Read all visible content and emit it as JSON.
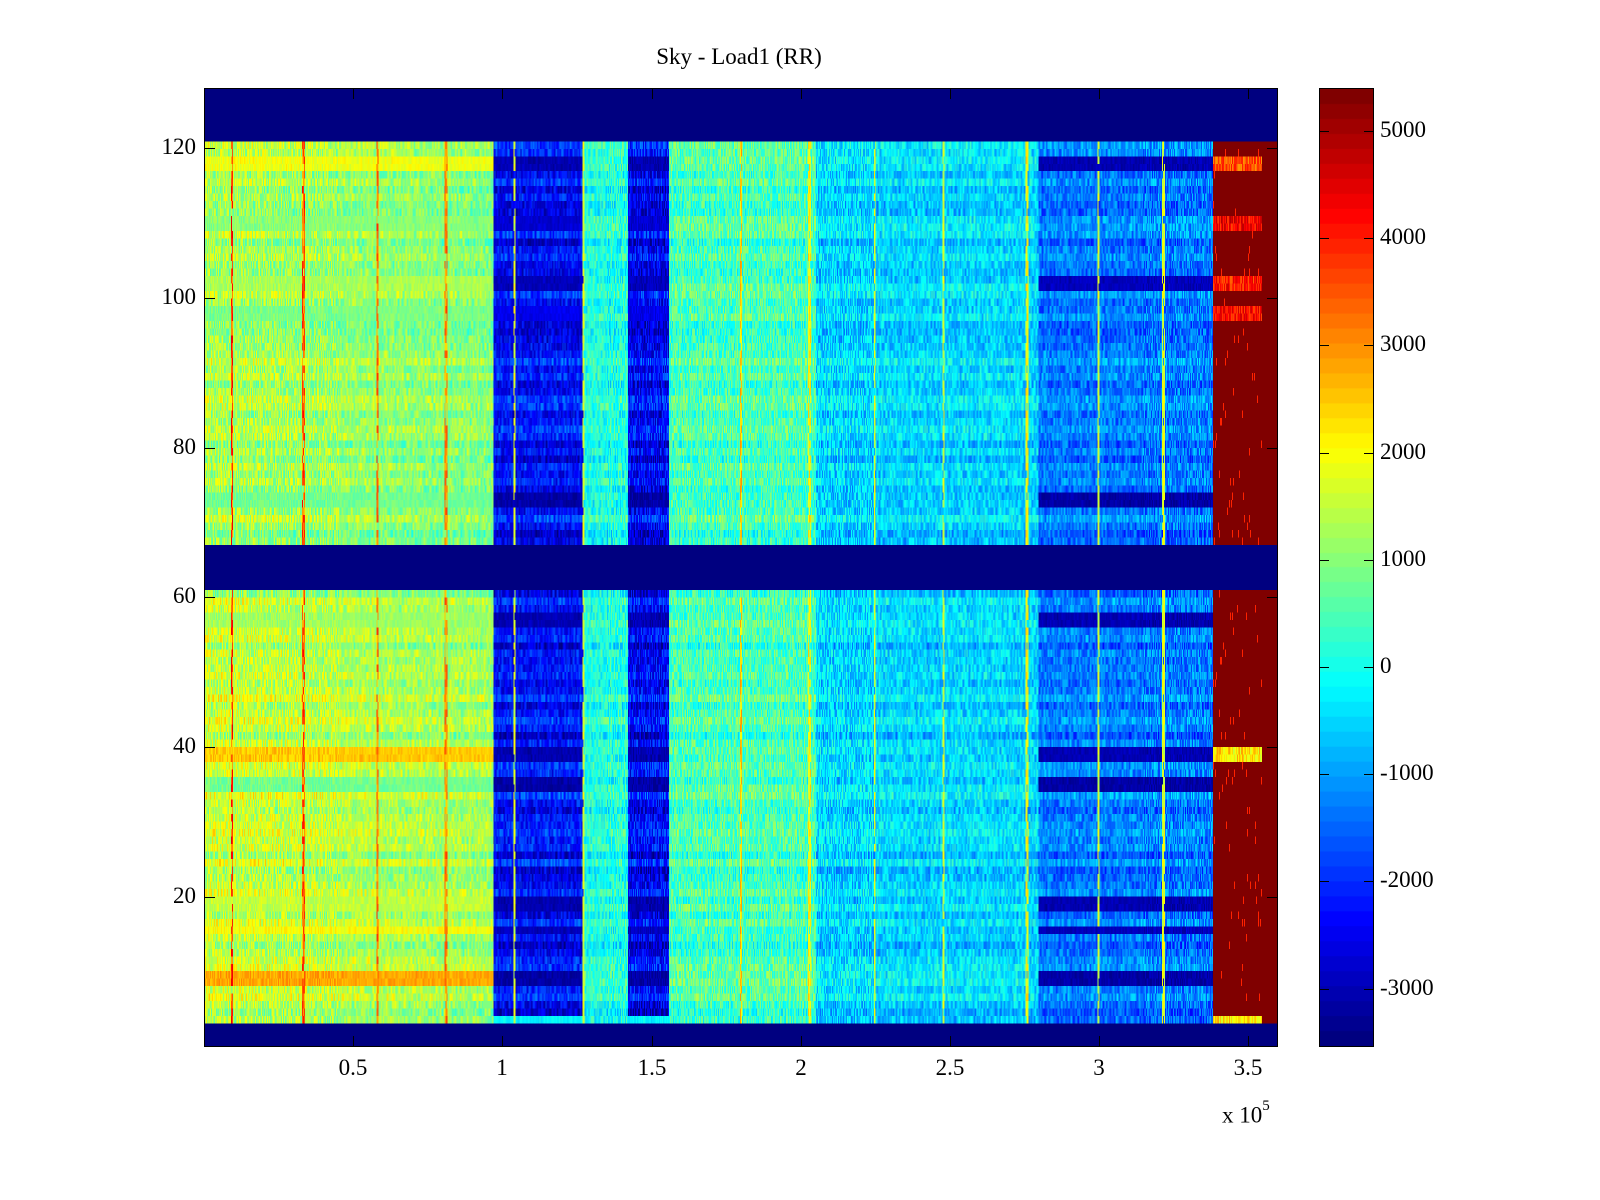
{
  "chart_data": {
    "type": "heatmap",
    "title": "Sky - Load1 (RR)",
    "xlabel": "",
    "ylabel": "",
    "x_multiplier": "x 10",
    "x_multiplier_exponent": "5",
    "xlim": [
      0,
      3.6
    ],
    "ylim": [
      0,
      128
    ],
    "clim": [
      -3545,
      5400
    ],
    "colormap": "jet",
    "x_ticks": [
      0.5,
      1,
      1.5,
      2,
      2.5,
      3,
      3.5
    ],
    "x_tick_labels": [
      "0.5",
      "1",
      "1.5",
      "2",
      "2.5",
      "3",
      "3.5"
    ],
    "y_ticks": [
      20,
      40,
      60,
      80,
      100,
      120
    ],
    "y_tick_labels": [
      "20",
      "40",
      "60",
      "80",
      "100",
      "120"
    ],
    "colorbar_ticks": [
      -3000,
      -2000,
      -1000,
      0,
      1000,
      2000,
      3000,
      4000,
      5000
    ],
    "colorbar_tick_labels": [
      "-3000",
      "-2000",
      "-1000",
      "0",
      "1000",
      "2000",
      "3000",
      "4000",
      "5000"
    ],
    "empty_row_bands": [
      [
        0,
        3
      ],
      [
        61.2,
        67.2
      ],
      [
        121.2,
        128
      ]
    ],
    "column_regions": [
      {
        "x0": 0.0,
        "x1": 0.97,
        "mean": 950
      },
      {
        "x0": 0.97,
        "x1": 1.27,
        "mean": -2300
      },
      {
        "x0": 1.27,
        "x1": 1.42,
        "mean": 100
      },
      {
        "x0": 1.42,
        "x1": 1.56,
        "mean": -2400
      },
      {
        "x0": 1.56,
        "x1": 2.05,
        "mean": 450
      },
      {
        "x0": 2.05,
        "x1": 2.8,
        "mean": -500
      },
      {
        "x0": 2.8,
        "x1": 3.385,
        "mean": -1300
      },
      {
        "x0": 3.385,
        "x1": 3.6,
        "mean": 5400
      }
    ],
    "vertical_stripes": [
      {
        "x": 0.09,
        "value": 4500
      },
      {
        "x": 0.33,
        "value": 4200
      },
      {
        "x": 0.58,
        "value": 4000
      },
      {
        "x": 0.81,
        "value": 3800
      },
      {
        "x": 1.04,
        "value": 2200
      },
      {
        "x": 1.27,
        "value": 2200
      },
      {
        "x": 1.8,
        "value": 3000
      },
      {
        "x": 2.03,
        "value": 2500
      },
      {
        "x": 2.25,
        "value": 2200
      },
      {
        "x": 2.48,
        "value": 2000
      },
      {
        "x": 2.76,
        "value": 2500
      },
      {
        "x": 3.0,
        "value": 2000
      },
      {
        "x": 3.22,
        "value": 2200
      }
    ],
    "row_anomalies": [
      {
        "y": 3.5,
        "left": 0,
        "blue": -500,
        "right_partial": 2200
      },
      {
        "y": 9,
        "left": 2800,
        "blue": -3400,
        "right_partial": null
      },
      {
        "y": 15.5,
        "left": 2000,
        "blue": -3200,
        "right_partial": null
      },
      {
        "y": 19,
        "left": 1500,
        "blue": -3300,
        "right_partial": null
      },
      {
        "y": 35,
        "left": 800,
        "blue": -3400,
        "right_partial": null
      },
      {
        "y": 39,
        "left": 2500,
        "blue": -3300,
        "right_partial": 2200
      },
      {
        "y": 57,
        "left": 1200,
        "blue": -3300,
        "right_partial": null
      },
      {
        "y": 73,
        "left": 800,
        "blue": -3400,
        "right_partial": null
      },
      {
        "y": 98,
        "left": 900,
        "blue": -2800,
        "right_partial": 4200
      },
      {
        "y": 102,
        "left": 1300,
        "blue": -3200,
        "right_partial": 4000
      },
      {
        "y": 110,
        "left": 1000,
        "blue": -3000,
        "right_partial": 4300
      },
      {
        "y": 118,
        "left": 1900,
        "blue": -3300,
        "right_partial": 3500
      }
    ]
  }
}
